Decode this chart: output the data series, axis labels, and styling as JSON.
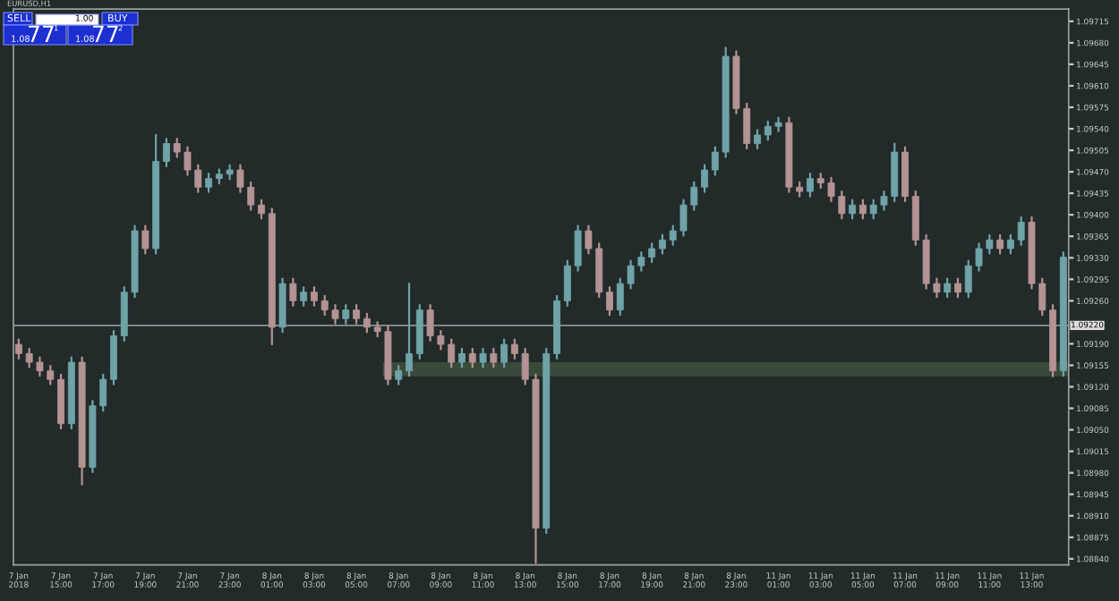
{
  "chart_data": {
    "type": "candlestick",
    "title": "EURUSD,H1",
    "annotations": [
      "SELL",
      "1.00",
      "BUY",
      "1.08",
      "77",
      "1",
      "1.08",
      "77",
      "2"
    ],
    "categories": [
      "7 Jan 2018",
      null,
      null,
      null,
      "7 Jan 15:00",
      null,
      null,
      null,
      "7 Jan 17:00",
      null,
      null,
      null,
      "7 Jan 19:00",
      null,
      null,
      null,
      "7 Jan 21:00",
      null,
      null,
      null,
      "7 Jan 23:00",
      null,
      null,
      null,
      "8 Jan 01:00",
      null,
      null,
      null,
      "8 Jan 03:00",
      null,
      null,
      null,
      "8 Jan 05:00",
      null,
      null,
      null,
      "8 Jan 07:00",
      null,
      null,
      null,
      "8 Jan 09:00",
      null,
      null,
      null,
      "8 Jan 11:00",
      null,
      null,
      null,
      "8 Jan 13:00",
      null,
      null,
      null,
      "8 Jan 15:00",
      null,
      null,
      null,
      "8 Jan 17:00",
      null,
      null,
      null,
      "8 Jan 19:00",
      null,
      null,
      null,
      "8 Jan 21:00",
      null,
      null,
      null,
      "8 Jan 23:00",
      null,
      null,
      null,
      "11 Jan 01:00",
      null,
      null,
      null,
      "11 Jan 03:00",
      null,
      null,
      null,
      "11 Jan 05:00",
      null,
      null,
      null,
      "11 Jan 07:00",
      null,
      null,
      null,
      "11 Jan 09:00",
      null,
      null,
      null,
      "11 Jan 11:00",
      null,
      null,
      null,
      "11 Jan 13:00",
      null,
      null,
      null
    ],
    "ohlc": [
      [
        1.09189,
        1.09197,
        1.09166,
        1.09174
      ],
      [
        1.09174,
        1.09182,
        1.09152,
        1.0916
      ],
      [
        1.0916,
        1.09168,
        1.09138,
        1.09146
      ],
      [
        1.09146,
        1.09154,
        1.09124,
        1.09132
      ],
      [
        1.09132,
        1.0914,
        1.09052,
        1.0906
      ],
      [
        1.0906,
        1.09168,
        1.09052,
        1.0916
      ],
      [
        1.0916,
        1.09168,
        1.08961,
        1.08989
      ],
      [
        1.08989,
        1.09097,
        1.08981,
        1.09089
      ],
      [
        1.09089,
        1.0914,
        1.09081,
        1.09132
      ],
      [
        1.09132,
        1.09211,
        1.09124,
        1.09203
      ],
      [
        1.09203,
        1.09282,
        1.09195,
        1.09274
      ],
      [
        1.09274,
        1.09382,
        1.09266,
        1.09374
      ],
      [
        1.09374,
        1.09382,
        1.09337,
        1.09345
      ],
      [
        1.09345,
        1.0953,
        1.09337,
        1.09487
      ],
      [
        1.09487,
        1.09524,
        1.09479,
        1.09516
      ],
      [
        1.09516,
        1.09524,
        1.09494,
        1.09502
      ],
      [
        1.09502,
        1.0951,
        1.09465,
        1.09473
      ],
      [
        1.09473,
        1.09481,
        1.09437,
        1.09445
      ],
      [
        1.09445,
        1.09467,
        1.09437,
        1.09459
      ],
      [
        1.09459,
        1.09474,
        1.09451,
        1.09466
      ],
      [
        1.09466,
        1.09481,
        1.09458,
        1.09473
      ],
      [
        1.09473,
        1.09481,
        1.09437,
        1.09445
      ],
      [
        1.09445,
        1.09453,
        1.09408,
        1.09416
      ],
      [
        1.09416,
        1.09424,
        1.09394,
        1.09402
      ],
      [
        1.09402,
        1.0941,
        1.09189,
        1.09217
      ],
      [
        1.09217,
        1.09296,
        1.09209,
        1.09288
      ],
      [
        1.09288,
        1.09296,
        1.09252,
        1.0926
      ],
      [
        1.0926,
        1.09282,
        1.09252,
        1.09274
      ],
      [
        1.09274,
        1.09282,
        1.09252,
        1.0926
      ],
      [
        1.0926,
        1.09268,
        1.09237,
        1.09245
      ],
      [
        1.09245,
        1.09253,
        1.09223,
        1.09231
      ],
      [
        1.09231,
        1.09253,
        1.09223,
        1.09245
      ],
      [
        1.09245,
        1.09253,
        1.09223,
        1.09231
      ],
      [
        1.09231,
        1.09239,
        1.09209,
        1.09217
      ],
      [
        1.09217,
        1.09225,
        1.09202,
        1.0921
      ],
      [
        1.0921,
        1.09218,
        1.09124,
        1.09132
      ],
      [
        1.09132,
        1.09154,
        1.09124,
        1.09146
      ],
      [
        1.09146,
        1.09288,
        1.09138,
        1.09174
      ],
      [
        1.09174,
        1.09253,
        1.09166,
        1.09245
      ],
      [
        1.09245,
        1.09253,
        1.09195,
        1.09203
      ],
      [
        1.09203,
        1.09211,
        1.09181,
        1.09189
      ],
      [
        1.09189,
        1.09197,
        1.09152,
        1.0916
      ],
      [
        1.0916,
        1.09182,
        1.09152,
        1.09174
      ],
      [
        1.09174,
        1.09182,
        1.09152,
        1.0916
      ],
      [
        1.0916,
        1.09182,
        1.09152,
        1.09174
      ],
      [
        1.09174,
        1.09182,
        1.09152,
        1.0916
      ],
      [
        1.0916,
        1.09197,
        1.09152,
        1.09189
      ],
      [
        1.09189,
        1.09197,
        1.09166,
        1.09174
      ],
      [
        1.09174,
        1.09182,
        1.09124,
        1.09132
      ],
      [
        1.09132,
        1.0914,
        1.08833,
        1.0889
      ],
      [
        1.0889,
        1.09182,
        1.08882,
        1.09174
      ],
      [
        1.09174,
        1.09268,
        1.09166,
        1.0926
      ],
      [
        1.0926,
        1.09325,
        1.09252,
        1.09317
      ],
      [
        1.09317,
        1.09382,
        1.09309,
        1.09374
      ],
      [
        1.09374,
        1.09382,
        1.09337,
        1.09345
      ],
      [
        1.09345,
        1.09353,
        1.09266,
        1.09274
      ],
      [
        1.09274,
        1.09282,
        1.09237,
        1.09245
      ],
      [
        1.09245,
        1.09296,
        1.09237,
        1.09288
      ],
      [
        1.09288,
        1.09325,
        1.0928,
        1.09317
      ],
      [
        1.09317,
        1.09339,
        1.09309,
        1.09331
      ],
      [
        1.09331,
        1.09353,
        1.09323,
        1.09345
      ],
      [
        1.09345,
        1.09367,
        1.09337,
        1.09359
      ],
      [
        1.09359,
        1.09382,
        1.09351,
        1.09374
      ],
      [
        1.09374,
        1.09424,
        1.09366,
        1.09416
      ],
      [
        1.09416,
        1.09453,
        1.09408,
        1.09445
      ],
      [
        1.09445,
        1.09481,
        1.09437,
        1.09473
      ],
      [
        1.09473,
        1.0951,
        1.09465,
        1.09502
      ],
      [
        1.09502,
        1.09672,
        1.09494,
        1.09658
      ],
      [
        1.09658,
        1.09666,
        1.09565,
        1.09573
      ],
      [
        1.09573,
        1.09581,
        1.09508,
        1.09516
      ],
      [
        1.09516,
        1.09538,
        1.09508,
        1.0953
      ],
      [
        1.0953,
        1.09552,
        1.09522,
        1.09544
      ],
      [
        1.09544,
        1.09558,
        1.09536,
        1.0955
      ],
      [
        1.0955,
        1.09558,
        1.09437,
        1.09445
      ],
      [
        1.09445,
        1.09453,
        1.0943,
        1.09438
      ],
      [
        1.09438,
        1.09467,
        1.0943,
        1.09459
      ],
      [
        1.09459,
        1.09467,
        1.09444,
        1.09452
      ],
      [
        1.09452,
        1.0946,
        1.09422,
        1.0943
      ],
      [
        1.0943,
        1.09438,
        1.09394,
        1.09402
      ],
      [
        1.09402,
        1.09424,
        1.09394,
        1.09416
      ],
      [
        1.09416,
        1.09424,
        1.09394,
        1.09402
      ],
      [
        1.09402,
        1.09424,
        1.09394,
        1.09416
      ],
      [
        1.09416,
        1.09438,
        1.09408,
        1.0943
      ],
      [
        1.0943,
        1.09516,
        1.09422,
        1.09502
      ],
      [
        1.09502,
        1.0951,
        1.09422,
        1.0943
      ],
      [
        1.0943,
        1.09438,
        1.09351,
        1.09359
      ],
      [
        1.09359,
        1.09367,
        1.0928,
        1.09288
      ],
      [
        1.09288,
        1.09296,
        1.09266,
        1.09274
      ],
      [
        1.09274,
        1.09296,
        1.09266,
        1.09288
      ],
      [
        1.09288,
        1.09296,
        1.09266,
        1.09274
      ],
      [
        1.09274,
        1.09325,
        1.09266,
        1.09317
      ],
      [
        1.09317,
        1.09353,
        1.09309,
        1.09345
      ],
      [
        1.09345,
        1.09367,
        1.09337,
        1.09359
      ],
      [
        1.09359,
        1.09367,
        1.09337,
        1.09345
      ],
      [
        1.09345,
        1.09367,
        1.09337,
        1.09359
      ],
      [
        1.09359,
        1.09396,
        1.09351,
        1.09388
      ],
      [
        1.09388,
        1.09396,
        1.0928,
        1.09288
      ],
      [
        1.09288,
        1.09296,
        1.09237,
        1.09245
      ],
      [
        1.09245,
        1.09253,
        1.09137,
        1.09146
      ],
      [
        1.09146,
        1.09339,
        1.09138,
        1.09331
      ]
    ],
    "colors": [
      "#b39393",
      "#b39393",
      "#b39393",
      "#b39393",
      "#b39393",
      "#6fa3a8",
      "#b39393",
      "#6fa3a8",
      "#6fa3a8",
      "#6fa3a8",
      "#6fa3a8",
      "#6fa3a8",
      "#b39393",
      "#6fa3a8",
      "#6fa3a8",
      "#b39393",
      "#b39393",
      "#b39393",
      "#6fa3a8",
      "#6fa3a8",
      "#6fa3a8",
      "#b39393",
      "#b39393",
      "#b39393",
      "#b39393",
      "#6fa3a8",
      "#b39393",
      "#6fa3a8",
      "#b39393",
      "#b39393",
      "#b39393",
      "#6fa3a8",
      "#b39393",
      "#b39393",
      "#b39393",
      "#b39393",
      "#6fa3a8",
      "#6fa3a8",
      "#6fa3a8",
      "#b39393",
      "#b39393",
      "#b39393",
      "#6fa3a8",
      "#b39393",
      "#6fa3a8",
      "#b39393",
      "#6fa3a8",
      "#b39393",
      "#b39393",
      "#b39393",
      "#6fa3a8",
      "#6fa3a8",
      "#6fa3a8",
      "#6fa3a8",
      "#b39393",
      "#b39393",
      "#b39393",
      "#6fa3a8",
      "#6fa3a8",
      "#6fa3a8",
      "#6fa3a8",
      "#6fa3a8",
      "#6fa3a8",
      "#6fa3a8",
      "#6fa3a8",
      "#6fa3a8",
      "#6fa3a8",
      "#6fa3a8",
      "#b39393",
      "#b39393",
      "#6fa3a8",
      "#6fa3a8",
      "#6fa3a8",
      "#b39393",
      "#b39393",
      "#6fa3a8",
      "#b39393",
      "#b39393",
      "#b39393",
      "#6fa3a8",
      "#b39393",
      "#6fa3a8",
      "#6fa3a8",
      "#6fa3a8",
      "#b39393",
      "#b39393",
      "#b39393",
      "#b39393",
      "#6fa3a8",
      "#b39393",
      "#6fa3a8",
      "#6fa3a8",
      "#6fa3a8",
      "#b39393",
      "#6fa3a8",
      "#6fa3a8",
      "#b39393",
      "#b39393",
      "#b39393",
      "#6fa3a8"
    ],
    "ylim": [
      1.0883,
      1.09735
    ],
    "yticks": [
      1.09715,
      {
        "value": 1.0968,
        "label": "1.09680"
      },
      1.09645,
      {
        "value": 1.0961,
        "label": "1.09610"
      },
      1.09575,
      {
        "value": 1.0954,
        "label": "1.09540"
      },
      1.09505,
      {
        "value": 1.0947,
        "label": "1.09470"
      },
      1.09435,
      {
        "value": 1.094,
        "label": "1.09400"
      },
      1.09365,
      {
        "value": 1.0933,
        "label": "1.09330"
      },
      1.09295,
      {
        "value": 1.0926,
        "label": "1.09260"
      },
      {
        "value": 1.0919,
        "label": "1.09190"
      },
      1.09155,
      {
        "value": 1.0912,
        "label": "1.09120"
      },
      1.09085,
      {
        "value": 1.0905,
        "label": "1.09050"
      },
      1.09015,
      {
        "value": 1.0898,
        "label": "1.08980"
      },
      1.08945,
      {
        "value": 1.0891,
        "label": "1.08910"
      },
      1.08875,
      {
        "value": 1.0884,
        "label": "1.08840"
      }
    ],
    "ref_lines": [
      {
        "axis": "y",
        "value": 1.0922,
        "label": "1.09220",
        "color": "#8a9696"
      }
    ],
    "bands": [
      {
        "axis": "y",
        "from": 1.09137,
        "to": 1.0916,
        "color": "#3a4a3a"
      }
    ]
  }
}
